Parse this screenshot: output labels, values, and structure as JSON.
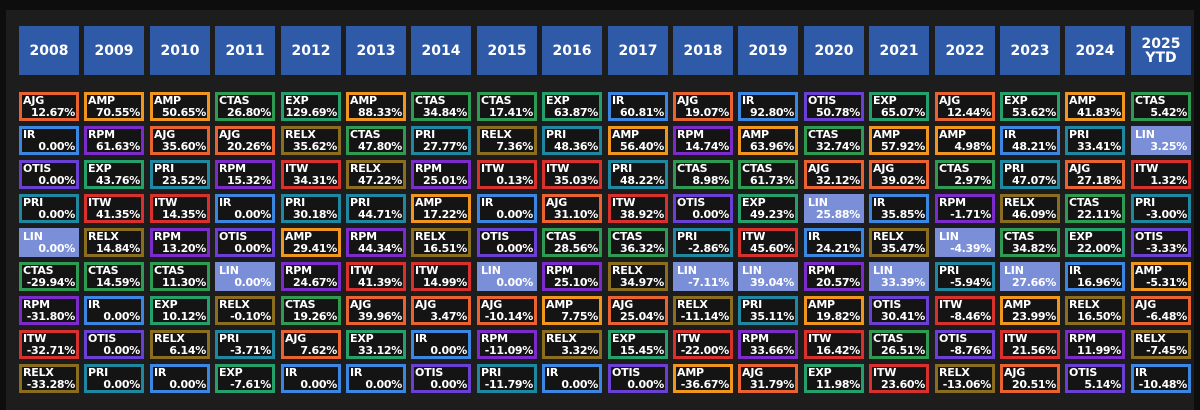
{
  "chart_data": {
    "type": "table",
    "years": [
      "2008",
      "2009",
      "2010",
      "2011",
      "2012",
      "2013",
      "2014",
      "2015",
      "2016",
      "2017",
      "2018",
      "2019",
      "2020",
      "2021",
      "2022",
      "2023",
      "2024",
      "2025\nYTD"
    ],
    "columns": [
      [
        [
          "AJG",
          "12.67%"
        ],
        [
          "IR",
          "0.00%"
        ],
        [
          "OTIS",
          "0.00%"
        ],
        [
          "PRI",
          "0.00%"
        ],
        [
          "LIN",
          "0.00%"
        ],
        [
          "CTAS",
          "-29.94%"
        ],
        [
          "RPM",
          "-31.80%"
        ],
        [
          "ITW",
          "-32.71%"
        ],
        [
          "RELX",
          "-33.28%"
        ]
      ],
      [
        [
          "AMP",
          "70.55%"
        ],
        [
          "RPM",
          "61.63%"
        ],
        [
          "EXP",
          "43.76%"
        ],
        [
          "ITW",
          "41.35%"
        ],
        [
          "RELX",
          "14.84%"
        ],
        [
          "CTAS",
          "14.59%"
        ],
        [
          "IR",
          "0.00%"
        ],
        [
          "OTIS",
          "0.00%"
        ],
        [
          "PRI",
          "0.00%"
        ]
      ],
      [
        [
          "AMP",
          "50.65%"
        ],
        [
          "AJG",
          "35.60%"
        ],
        [
          "PRI",
          "23.52%"
        ],
        [
          "ITW",
          "14.35%"
        ],
        [
          "RPM",
          "13.20%"
        ],
        [
          "CTAS",
          "11.30%"
        ],
        [
          "EXP",
          "10.12%"
        ],
        [
          "RELX",
          "6.14%"
        ],
        [
          "IR",
          "0.00%"
        ]
      ],
      [
        [
          "CTAS",
          "26.80%"
        ],
        [
          "AJG",
          "20.26%"
        ],
        [
          "RPM",
          "15.32%"
        ],
        [
          "IR",
          "0.00%"
        ],
        [
          "OTIS",
          "0.00%"
        ],
        [
          "LIN",
          "0.00%"
        ],
        [
          "RELX",
          "-0.10%"
        ],
        [
          "PRI",
          "-3.71%"
        ],
        [
          "EXP",
          "-7.61%"
        ]
      ],
      [
        [
          "EXP",
          "129.69%"
        ],
        [
          "RELX",
          "35.62%"
        ],
        [
          "ITW",
          "34.31%"
        ],
        [
          "PRI",
          "30.18%"
        ],
        [
          "AMP",
          "29.41%"
        ],
        [
          "RPM",
          "24.67%"
        ],
        [
          "CTAS",
          "19.26%"
        ],
        [
          "AJG",
          "7.62%"
        ],
        [
          "IR",
          "0.00%"
        ]
      ],
      [
        [
          "AMP",
          "88.33%"
        ],
        [
          "CTAS",
          "47.80%"
        ],
        [
          "RELX",
          "47.22%"
        ],
        [
          "PRI",
          "44.71%"
        ],
        [
          "RPM",
          "44.34%"
        ],
        [
          "ITW",
          "41.39%"
        ],
        [
          "AJG",
          "39.96%"
        ],
        [
          "EXP",
          "33.12%"
        ],
        [
          "IR",
          "0.00%"
        ]
      ],
      [
        [
          "CTAS",
          "34.84%"
        ],
        [
          "PRI",
          "27.77%"
        ],
        [
          "RPM",
          "25.01%"
        ],
        [
          "AMP",
          "17.22%"
        ],
        [
          "RELX",
          "16.51%"
        ],
        [
          "ITW",
          "14.99%"
        ],
        [
          "AJG",
          "3.47%"
        ],
        [
          "IR",
          "0.00%"
        ],
        [
          "OTIS",
          "0.00%"
        ]
      ],
      [
        [
          "CTAS",
          "17.41%"
        ],
        [
          "RELX",
          "7.36%"
        ],
        [
          "ITW",
          "0.13%"
        ],
        [
          "IR",
          "0.00%"
        ],
        [
          "OTIS",
          "0.00%"
        ],
        [
          "LIN",
          "0.00%"
        ],
        [
          "AJG",
          "-10.14%"
        ],
        [
          "RPM",
          "-11.09%"
        ],
        [
          "PRI",
          "-11.79%"
        ]
      ],
      [
        [
          "EXP",
          "63.87%"
        ],
        [
          "PRI",
          "48.36%"
        ],
        [
          "ITW",
          "35.03%"
        ],
        [
          "AJG",
          "31.10%"
        ],
        [
          "CTAS",
          "28.56%"
        ],
        [
          "RPM",
          "25.10%"
        ],
        [
          "AMP",
          "7.75%"
        ],
        [
          "RELX",
          "3.32%"
        ],
        [
          "IR",
          "0.00%"
        ]
      ],
      [
        [
          "IR",
          "60.81%"
        ],
        [
          "AMP",
          "56.40%"
        ],
        [
          "PRI",
          "48.22%"
        ],
        [
          "ITW",
          "38.92%"
        ],
        [
          "CTAS",
          "36.32%"
        ],
        [
          "RELX",
          "34.97%"
        ],
        [
          "AJG",
          "25.04%"
        ],
        [
          "EXP",
          "15.45%"
        ],
        [
          "OTIS",
          "0.00%"
        ]
      ],
      [
        [
          "AJG",
          "19.07%"
        ],
        [
          "RPM",
          "14.74%"
        ],
        [
          "CTAS",
          "8.98%"
        ],
        [
          "OTIS",
          "0.00%"
        ],
        [
          "PRI",
          "-2.86%"
        ],
        [
          "LIN",
          "-7.11%"
        ],
        [
          "RELX",
          "-11.14%"
        ],
        [
          "ITW",
          "-22.00%"
        ],
        [
          "AMP",
          "-36.67%"
        ]
      ],
      [
        [
          "IR",
          "92.80%"
        ],
        [
          "AMP",
          "63.96%"
        ],
        [
          "CTAS",
          "61.73%"
        ],
        [
          "EXP",
          "49.23%"
        ],
        [
          "ITW",
          "45.60%"
        ],
        [
          "LIN",
          "39.04%"
        ],
        [
          "PRI",
          "35.11%"
        ],
        [
          "RPM",
          "33.66%"
        ],
        [
          "AJG",
          "31.79%"
        ]
      ],
      [
        [
          "OTIS",
          "50.78%"
        ],
        [
          "CTAS",
          "32.74%"
        ],
        [
          "AJG",
          "32.12%"
        ],
        [
          "LIN",
          "25.88%"
        ],
        [
          "IR",
          "24.21%"
        ],
        [
          "RPM",
          "20.57%"
        ],
        [
          "AMP",
          "19.82%"
        ],
        [
          "ITW",
          "16.42%"
        ],
        [
          "EXP",
          "11.98%"
        ]
      ],
      [
        [
          "EXP",
          "65.07%"
        ],
        [
          "AMP",
          "57.92%"
        ],
        [
          "AJG",
          "39.02%"
        ],
        [
          "IR",
          "35.85%"
        ],
        [
          "RELX",
          "35.47%"
        ],
        [
          "LIN",
          "33.39%"
        ],
        [
          "OTIS",
          "30.41%"
        ],
        [
          "CTAS",
          "26.51%"
        ],
        [
          "ITW",
          "23.60%"
        ]
      ],
      [
        [
          "AJG",
          "12.44%"
        ],
        [
          "AMP",
          "4.98%"
        ],
        [
          "CTAS",
          "2.97%"
        ],
        [
          "RPM",
          "-1.71%"
        ],
        [
          "LIN",
          "-4.39%"
        ],
        [
          "PRI",
          "-5.94%"
        ],
        [
          "ITW",
          "-8.46%"
        ],
        [
          "OTIS",
          "-8.76%"
        ],
        [
          "RELX",
          "-13.06%"
        ]
      ],
      [
        [
          "EXP",
          "53.62%"
        ],
        [
          "IR",
          "48.21%"
        ],
        [
          "PRI",
          "47.07%"
        ],
        [
          "RELX",
          "46.09%"
        ],
        [
          "CTAS",
          "34.82%"
        ],
        [
          "LIN",
          "27.66%"
        ],
        [
          "AMP",
          "23.99%"
        ],
        [
          "ITW",
          "21.56%"
        ],
        [
          "AJG",
          "20.51%"
        ]
      ],
      [
        [
          "AMP",
          "41.83%"
        ],
        [
          "PRI",
          "33.41%"
        ],
        [
          "AJG",
          "27.18%"
        ],
        [
          "CTAS",
          "22.11%"
        ],
        [
          "EXP",
          "22.00%"
        ],
        [
          "IR",
          "16.96%"
        ],
        [
          "RELX",
          "16.50%"
        ],
        [
          "RPM",
          "11.99%"
        ],
        [
          "OTIS",
          "5.14%"
        ]
      ],
      [
        [
          "CTAS",
          "5.42%"
        ],
        [
          "LIN",
          "3.25%"
        ],
        [
          "ITW",
          "1.32%"
        ],
        [
          "PRI",
          "-3.00%"
        ],
        [
          "OTIS",
          "-3.33%"
        ],
        [
          "AMP",
          "-5.31%"
        ],
        [
          "AJG",
          "-6.48%"
        ],
        [
          "RELX",
          "-7.45%"
        ],
        [
          "IR",
          "-10.48%"
        ]
      ]
    ],
    "ticker_colors": {
      "AJG": "#e8632f",
      "AMP": "#f0961e",
      "CTAS": "#2e9a52",
      "EXP": "#26a06a",
      "IR": "#3a86e0",
      "OTIS": "#6a3fd4",
      "PRI": "#1f88a0",
      "LIN": "#7b8fd8",
      "RELX": "#8a6d1e",
      "ITW": "#d8302c",
      "RPM": "#7a2bc9"
    },
    "header_color": "#2f5aa8",
    "background_color": "#1d1d1d"
  }
}
